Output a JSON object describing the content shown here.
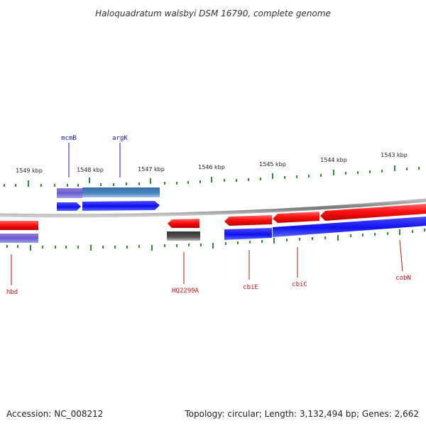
{
  "title": "Haloquadratum walsbyi DSM 16790, complete genome",
  "scale": {
    "labels": [
      "1549 kbp",
      "1548 kbp",
      "1547 kbp",
      "1546 kbp",
      "1545 kbp",
      "1544 kbp",
      "1543 kbp"
    ]
  },
  "genes": {
    "mcmB": "mcmB",
    "argK": "argK",
    "hbd": "hbd",
    "HQ2299A": "HQ2299A",
    "cbiE": "cbiE",
    "cbiC": "cbiC",
    "cobN": "cobN"
  },
  "colors": {
    "forward_gene": "#ff1010",
    "reverse_gene": "#1010ee",
    "orf_purple": "#6a5acd",
    "orf_steel": "#4a86c0",
    "pseudo_gray": "#555555",
    "backbone": "#888888",
    "tick": "#2e8b2e",
    "label_blue": "#1010cc",
    "label_red": "#cc1111"
  },
  "footer": {
    "accession": "Accession: NC_008212",
    "topology": "Topology: circular; Length: 3,132,494 bp; Genes: 2,662"
  }
}
